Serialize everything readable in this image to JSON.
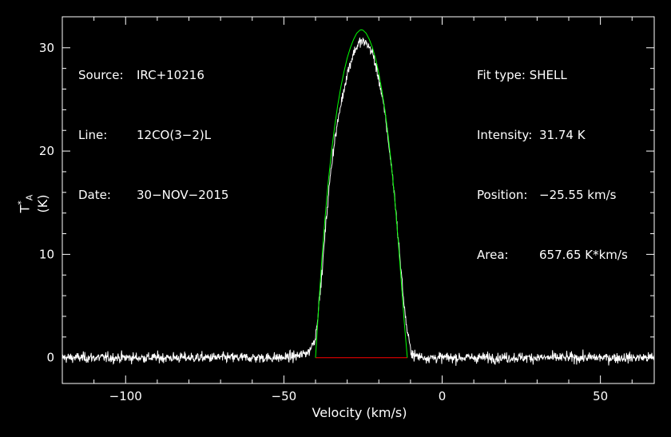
{
  "header_left": {
    "source_label": "Source:",
    "source_value": "IRC+10216",
    "line_label": "Line:",
    "line_value": "12CO(3−2)L",
    "date_label": "Date:",
    "date_value": "30−NOV−2015"
  },
  "header_right": {
    "fit_type_label": "Fit type:",
    "fit_type_value": "SHELL",
    "intensity_label": "Intensity:",
    "intensity_value": "31.74 K",
    "position_label": "Position:",
    "position_value": "−25.55 km/s",
    "area_label": "Area:",
    "area_value": "657.65 K*km/s"
  },
  "chart_data": {
    "type": "line",
    "xlabel": "Velocity (km/s)",
    "ylabel_main": "T",
    "ylabel_sup": "*",
    "ylabel_sub": "A",
    "ylabel_unit": "(K)",
    "xlim": [
      -120,
      67
    ],
    "ylim": [
      -2.5,
      33
    ],
    "xticks": [
      -100,
      -50,
      0,
      50
    ],
    "xtick_labels": [
      "−100",
      "−50",
      "0",
      "50"
    ],
    "yticks": [
      0,
      10,
      20,
      30
    ],
    "ytick_labels": [
      "0",
      "10",
      "20",
      "30"
    ],
    "grid": false,
    "colors": {
      "spectrum": "#ffffff",
      "fit": "#00ff00",
      "baseline": "#ff0000",
      "axes": "#ffffff",
      "background": "#000000"
    },
    "series": [
      {
        "kind": "observed_spectrum",
        "x": [
          -120,
          -80,
          -50,
          -45,
          -42,
          -40,
          -39,
          -38,
          -37,
          -36,
          -35,
          -34,
          -32,
          -30,
          -28,
          -26,
          -24,
          -22,
          -20,
          -18,
          -16,
          -15,
          -14,
          -13,
          -12,
          -11,
          -10,
          -9,
          -5,
          0,
          30,
          67
        ],
        "y": [
          0,
          0,
          0,
          0.2,
          0.6,
          2,
          5,
          8,
          12,
          15.5,
          18.5,
          21,
          24.5,
          27.5,
          29.5,
          30.6,
          30.5,
          29.5,
          27,
          23.5,
          18.5,
          15.5,
          12,
          8.5,
          5,
          2.5,
          0.8,
          0.2,
          0,
          0,
          0,
          0
        ],
        "noise_rms": 0.25
      },
      {
        "kind": "shell_fit",
        "x": [
          -40,
          -39,
          -38,
          -37,
          -36,
          -35,
          -34,
          -33,
          -32,
          -31,
          -30,
          -29,
          -28,
          -27,
          -26,
          -25.55,
          -25,
          -24,
          -23,
          -22,
          -21,
          -20,
          -19,
          -18,
          -17,
          -16,
          -15,
          -14,
          -13,
          -12,
          -11
        ],
        "y": [
          0,
          5,
          9.5,
          13.5,
          17,
          19.8,
          22.3,
          24.4,
          26.2,
          27.7,
          29,
          30,
          30.8,
          31.4,
          31.7,
          31.74,
          31.7,
          31.4,
          30.8,
          30,
          28.9,
          27.5,
          25.8,
          23.8,
          21.4,
          18.6,
          15.4,
          11.8,
          7.7,
          3.5,
          0
        ]
      },
      {
        "kind": "fit_baseline",
        "x": [
          -40,
          -11
        ],
        "y": [
          0,
          0
        ]
      }
    ]
  }
}
